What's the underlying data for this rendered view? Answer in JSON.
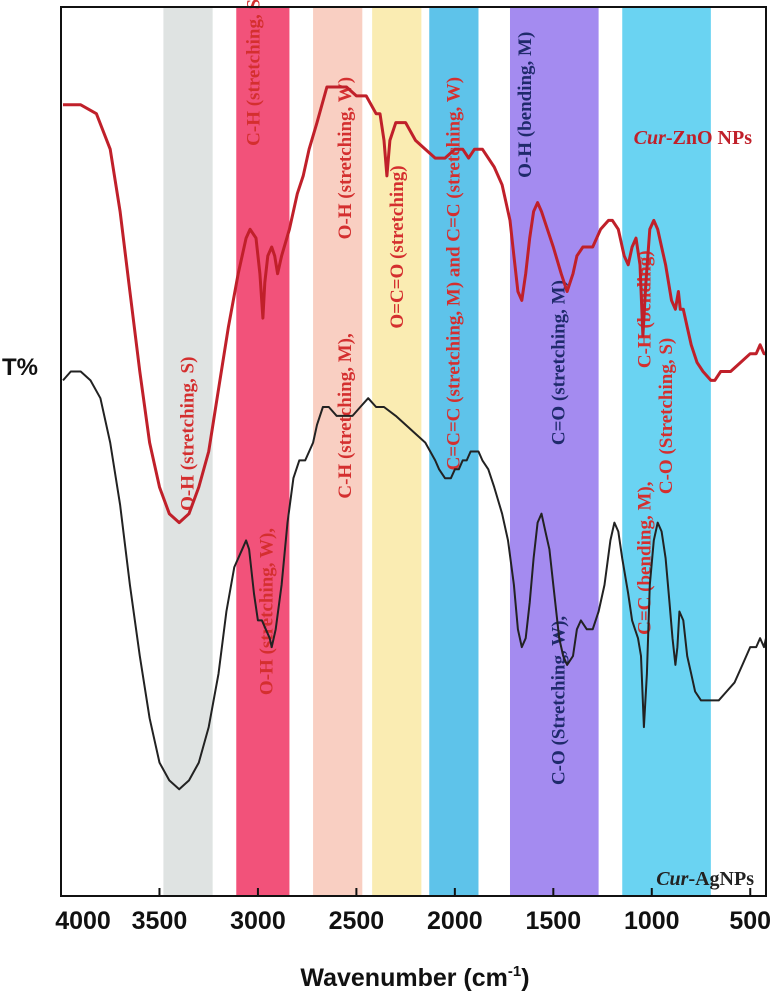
{
  "chart_data": {
    "type": "line",
    "xlabel": "Wavenumber (cm",
    "xlabel_sup": "-1",
    "xlabel_tail": ")",
    "ylabel": "T%",
    "xlim": [
      4000,
      420
    ],
    "x_ticks": [
      "4000",
      "3500",
      "3000",
      "2500",
      "2000",
      "1500",
      "1000",
      "500"
    ],
    "x_tick_values": [
      4000,
      3500,
      3000,
      2500,
      2000,
      1500,
      1000,
      500
    ],
    "y_units": "arbitrary (offset transmittance, 0 = bottom, 100 = top)",
    "bands": [
      {
        "from": 3480,
        "to": 3230,
        "color": "#dfe3e2"
      },
      {
        "from": 3110,
        "to": 2840,
        "color": "#f2527a"
      },
      {
        "from": 2720,
        "to": 2470,
        "color": "#f9cfc2"
      },
      {
        "from": 2420,
        "to": 2170,
        "color": "#faecb2"
      },
      {
        "from": 2130,
        "to": 1880,
        "color": "#5ec3ea"
      },
      {
        "from": 1720,
        "to": 1270,
        "color": "#a48bf0"
      },
      {
        "from": 1150,
        "to": 700,
        "color": "#6ad3f2"
      }
    ],
    "series": [
      {
        "name": "Cur-ZnO NPs",
        "name_italic": "Cur",
        "name_rest": "-ZnO NPs",
        "color": "#c0202a",
        "points": [
          [
            3990,
            89
          ],
          [
            3900,
            89
          ],
          [
            3820,
            88
          ],
          [
            3750,
            84
          ],
          [
            3700,
            77
          ],
          [
            3650,
            68
          ],
          [
            3600,
            59
          ],
          [
            3550,
            51
          ],
          [
            3500,
            46
          ],
          [
            3450,
            43
          ],
          [
            3400,
            42
          ],
          [
            3350,
            43
          ],
          [
            3300,
            46
          ],
          [
            3250,
            50
          ],
          [
            3200,
            57
          ],
          [
            3150,
            64
          ],
          [
            3100,
            70
          ],
          [
            3060,
            74
          ],
          [
            3040,
            75
          ],
          [
            3010,
            74
          ],
          [
            2990,
            70
          ],
          [
            2975,
            65
          ],
          [
            2965,
            69
          ],
          [
            2950,
            72
          ],
          [
            2930,
            73
          ],
          [
            2915,
            72
          ],
          [
            2900,
            70
          ],
          [
            2880,
            72
          ],
          [
            2840,
            75
          ],
          [
            2800,
            79
          ],
          [
            2770,
            81
          ],
          [
            2740,
            84
          ],
          [
            2700,
            87
          ],
          [
            2650,
            91
          ],
          [
            2600,
            91
          ],
          [
            2550,
            91
          ],
          [
            2500,
            90
          ],
          [
            2450,
            90
          ],
          [
            2400,
            88
          ],
          [
            2380,
            88
          ],
          [
            2360,
            85
          ],
          [
            2345,
            81
          ],
          [
            2330,
            85
          ],
          [
            2300,
            87
          ],
          [
            2250,
            87
          ],
          [
            2200,
            85
          ],
          [
            2150,
            84
          ],
          [
            2100,
            83
          ],
          [
            2050,
            83
          ],
          [
            2000,
            84
          ],
          [
            1960,
            84
          ],
          [
            1930,
            83
          ],
          [
            1900,
            84
          ],
          [
            1860,
            84
          ],
          [
            1800,
            82
          ],
          [
            1760,
            80
          ],
          [
            1720,
            76
          ],
          [
            1700,
            72
          ],
          [
            1680,
            68
          ],
          [
            1660,
            67
          ],
          [
            1640,
            70
          ],
          [
            1620,
            74
          ],
          [
            1600,
            77
          ],
          [
            1580,
            78
          ],
          [
            1560,
            77
          ],
          [
            1530,
            75
          ],
          [
            1500,
            73
          ],
          [
            1460,
            70
          ],
          [
            1430,
            68
          ],
          [
            1400,
            70
          ],
          [
            1380,
            72
          ],
          [
            1350,
            73
          ],
          [
            1320,
            73
          ],
          [
            1300,
            73
          ],
          [
            1260,
            75
          ],
          [
            1220,
            76
          ],
          [
            1200,
            76
          ],
          [
            1170,
            75
          ],
          [
            1140,
            72
          ],
          [
            1120,
            71
          ],
          [
            1100,
            73
          ],
          [
            1080,
            74
          ],
          [
            1060,
            71
          ],
          [
            1045,
            63
          ],
          [
            1030,
            69
          ],
          [
            1010,
            75
          ],
          [
            990,
            76
          ],
          [
            970,
            75
          ],
          [
            950,
            73
          ],
          [
            930,
            71
          ],
          [
            900,
            67
          ],
          [
            880,
            66
          ],
          [
            865,
            68
          ],
          [
            855,
            66
          ],
          [
            840,
            66
          ],
          [
            820,
            64
          ],
          [
            800,
            62
          ],
          [
            770,
            60
          ],
          [
            740,
            59
          ],
          [
            700,
            58
          ],
          [
            680,
            58
          ],
          [
            650,
            59
          ],
          [
            600,
            59
          ],
          [
            550,
            60
          ],
          [
            500,
            61
          ],
          [
            470,
            61
          ],
          [
            450,
            62
          ],
          [
            430,
            61
          ],
          [
            420,
            61
          ]
        ]
      },
      {
        "name": "Cur-AgNPs",
        "name_italic": "Cur",
        "name_rest": "-AgNPs",
        "color": "#222222",
        "points": [
          [
            3990,
            58
          ],
          [
            3950,
            59
          ],
          [
            3900,
            59
          ],
          [
            3850,
            58
          ],
          [
            3800,
            56
          ],
          [
            3750,
            51
          ],
          [
            3700,
            44
          ],
          [
            3650,
            35
          ],
          [
            3600,
            27
          ],
          [
            3550,
            20
          ],
          [
            3500,
            15
          ],
          [
            3450,
            13
          ],
          [
            3400,
            12
          ],
          [
            3350,
            13
          ],
          [
            3300,
            15
          ],
          [
            3250,
            19
          ],
          [
            3200,
            25
          ],
          [
            3160,
            32
          ],
          [
            3120,
            37
          ],
          [
            3080,
            39
          ],
          [
            3060,
            40
          ],
          [
            3045,
            39
          ],
          [
            3020,
            34
          ],
          [
            3000,
            31
          ],
          [
            2980,
            31
          ],
          [
            2960,
            30
          ],
          [
            2940,
            29
          ],
          [
            2930,
            28
          ],
          [
            2910,
            30
          ],
          [
            2880,
            35
          ],
          [
            2850,
            42
          ],
          [
            2820,
            47
          ],
          [
            2790,
            49
          ],
          [
            2760,
            49
          ],
          [
            2720,
            51
          ],
          [
            2700,
            53
          ],
          [
            2670,
            55
          ],
          [
            2640,
            55
          ],
          [
            2600,
            54
          ],
          [
            2560,
            54
          ],
          [
            2520,
            54
          ],
          [
            2480,
            55
          ],
          [
            2440,
            56
          ],
          [
            2400,
            55
          ],
          [
            2360,
            55
          ],
          [
            2300,
            54
          ],
          [
            2250,
            53
          ],
          [
            2200,
            52
          ],
          [
            2150,
            51
          ],
          [
            2100,
            49
          ],
          [
            2080,
            48
          ],
          [
            2050,
            47
          ],
          [
            2020,
            47
          ],
          [
            2000,
            48
          ],
          [
            1980,
            48
          ],
          [
            1960,
            49
          ],
          [
            1940,
            49
          ],
          [
            1920,
            50
          ],
          [
            1900,
            50
          ],
          [
            1880,
            50
          ],
          [
            1860,
            49
          ],
          [
            1830,
            48
          ],
          [
            1800,
            46
          ],
          [
            1760,
            43
          ],
          [
            1730,
            40
          ],
          [
            1700,
            35
          ],
          [
            1680,
            30
          ],
          [
            1660,
            28
          ],
          [
            1640,
            29
          ],
          [
            1620,
            33
          ],
          [
            1600,
            38
          ],
          [
            1580,
            42
          ],
          [
            1560,
            43
          ],
          [
            1540,
            41
          ],
          [
            1520,
            39
          ],
          [
            1500,
            35
          ],
          [
            1470,
            29
          ],
          [
            1450,
            27
          ],
          [
            1430,
            26
          ],
          [
            1400,
            27
          ],
          [
            1380,
            30
          ],
          [
            1360,
            31
          ],
          [
            1330,
            30
          ],
          [
            1300,
            30
          ],
          [
            1270,
            32
          ],
          [
            1240,
            35
          ],
          [
            1210,
            40
          ],
          [
            1190,
            42
          ],
          [
            1170,
            41
          ],
          [
            1150,
            38
          ],
          [
            1120,
            34
          ],
          [
            1100,
            31
          ],
          [
            1085,
            30
          ],
          [
            1070,
            29
          ],
          [
            1055,
            27
          ],
          [
            1040,
            19
          ],
          [
            1025,
            25
          ],
          [
            1010,
            35
          ],
          [
            990,
            40
          ],
          [
            970,
            42
          ],
          [
            950,
            41
          ],
          [
            930,
            38
          ],
          [
            910,
            33
          ],
          [
            895,
            29
          ],
          [
            880,
            26
          ],
          [
            870,
            28
          ],
          [
            860,
            32
          ],
          [
            840,
            31
          ],
          [
            820,
            27
          ],
          [
            800,
            25
          ],
          [
            780,
            23
          ],
          [
            750,
            22
          ],
          [
            700,
            22
          ],
          [
            660,
            22
          ],
          [
            620,
            23
          ],
          [
            580,
            24
          ],
          [
            540,
            26
          ],
          [
            500,
            28
          ],
          [
            470,
            28
          ],
          [
            450,
            29
          ],
          [
            430,
            28
          ],
          [
            420,
            29
          ]
        ]
      }
    ],
    "annotations": [
      {
        "text": "O-H (stretching, S)",
        "x": 3355,
        "y": 52,
        "color": "#d42f2f"
      },
      {
        "text": "C-H (stretching, S)",
        "x": 3020,
        "y": 93,
        "color": "#d42f2f"
      },
      {
        "text": "O-H (stretching, W),",
        "x": 2955,
        "y": 32,
        "color": "#d42f2f"
      },
      {
        "text": "O-H (stretching, W)",
        "x": 2555,
        "y": 83,
        "color": "#d42f2f"
      },
      {
        "text": "C-H (stretching, M),",
        "x": 2555,
        "y": 54,
        "color": "#d42f2f"
      },
      {
        "text": "O=C=O (stretching)",
        "x": 2290,
        "y": 73,
        "color": "#d42f2f"
      },
      {
        "text": "C=C=C (stretching, M) and C=C (stretching, W)",
        "x": 2005,
        "y": 70,
        "color": "#d42f2f"
      },
      {
        "text": "O-H (bending, M)",
        "x": 1640,
        "y": 89,
        "color": "#1f2a6b"
      },
      {
        "text": "C=O (stretching, M)",
        "x": 1470,
        "y": 60,
        "color": "#1f2a6b"
      },
      {
        "text": "C-O (Stretching, W),",
        "x": 1470,
        "y": 22,
        "color": "#1f2a6b"
      },
      {
        "text": "C-H (bending)",
        "x": 1035,
        "y": 66,
        "color": "#d42f2f"
      },
      {
        "text": "C=C (bending, M),",
        "x": 1035,
        "y": 38,
        "color": "#d42f2f"
      },
      {
        "text": "C-O (Stretching, S)",
        "x": 925,
        "y": 54,
        "color": "#d42f2f"
      }
    ]
  }
}
